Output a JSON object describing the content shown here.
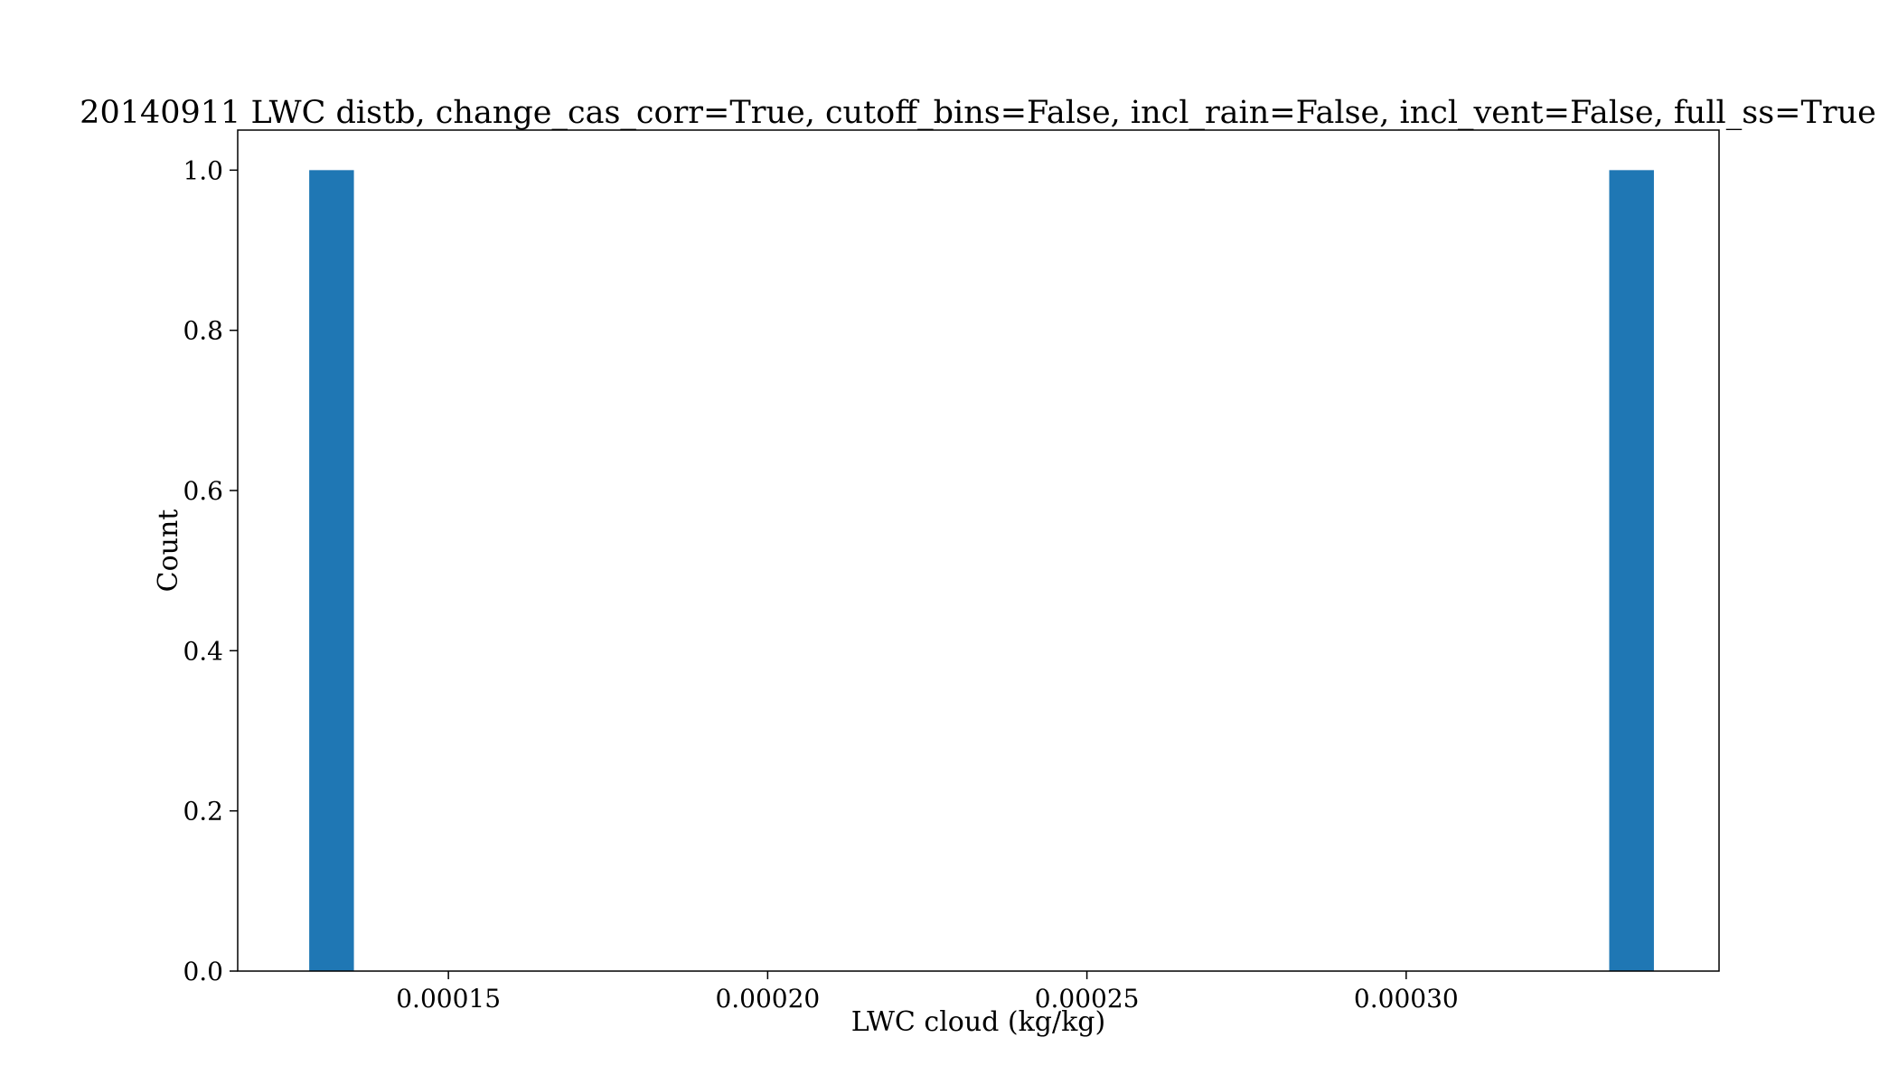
{
  "chart_data": {
    "type": "bar",
    "title": "20140911 LWC distb, change_cas_corr=True, cutoff_bins=False, incl_rain=False, incl_vent=False, full_ss=True",
    "xlabel": "LWC cloud (kg/kg)",
    "ylabel": "Count",
    "xlim": [
      0.000117,
      0.000349
    ],
    "ylim": [
      0,
      1.05
    ],
    "xticks": [
      0.00015,
      0.0002,
      0.00025,
      0.0003
    ],
    "xtick_labels": [
      "0.00015",
      "0.00020",
      "0.00025",
      "0.00030"
    ],
    "yticks": [
      0.0,
      0.2,
      0.4,
      0.6,
      0.8,
      1.0
    ],
    "ytick_labels": [
      "0.0",
      "0.2",
      "0.4",
      "0.6",
      "0.8",
      "1.0"
    ],
    "bars": [
      {
        "x0": 0.0001282,
        "x1": 0.0001352,
        "value": 1
      },
      {
        "x0": 0.0003318,
        "x1": 0.0003388,
        "value": 1
      }
    ],
    "bar_color": "#1f77b4",
    "grid": false,
    "legend": "none"
  }
}
